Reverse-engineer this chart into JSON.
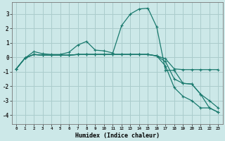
{
  "xlabel": "Humidex (Indice chaleur)",
  "bg_color": "#cce8e8",
  "grid_color": "#aacccc",
  "line_color": "#1a7a6e",
  "x_ticks": [
    0,
    1,
    2,
    3,
    4,
    5,
    6,
    7,
    8,
    9,
    10,
    11,
    12,
    13,
    14,
    15,
    16,
    17,
    18,
    19,
    20,
    21,
    22,
    23
  ],
  "ylim": [
    -4.6,
    3.8
  ],
  "xlim": [
    -0.5,
    23.5
  ],
  "yticks": [
    -4,
    -3,
    -2,
    -1,
    0,
    1,
    2,
    3
  ],
  "curve1_x": [
    0,
    1,
    2,
    3,
    4,
    5,
    6,
    7,
    8,
    9,
    10,
    11,
    12,
    13,
    14,
    15,
    16,
    17,
    18,
    19,
    20,
    21,
    22,
    23
  ],
  "curve1_y": [
    -0.8,
    -0.05,
    0.4,
    0.25,
    0.2,
    0.2,
    0.35,
    0.85,
    1.1,
    0.5,
    0.45,
    0.3,
    2.2,
    3.0,
    3.35,
    3.4,
    2.1,
    -0.9,
    -0.9,
    -1.8,
    -1.85,
    -2.55,
    -3.5,
    -3.8
  ],
  "curve2_x": [
    0,
    1,
    2,
    3,
    4,
    5,
    6,
    7,
    8,
    9,
    10,
    11,
    12,
    13,
    14,
    15,
    16,
    17,
    18,
    19,
    20,
    21,
    22,
    23
  ],
  "curve2_y": [
    -0.8,
    -0.05,
    0.2,
    0.15,
    0.15,
    0.15,
    0.15,
    0.2,
    0.2,
    0.2,
    0.2,
    0.2,
    0.2,
    0.2,
    0.2,
    0.2,
    0.1,
    -0.1,
    -0.8,
    -0.85,
    -0.85,
    -0.85,
    -0.85,
    -0.85
  ],
  "curve3_x": [
    0,
    1,
    2,
    3,
    4,
    5,
    6,
    7,
    8,
    9,
    10,
    11,
    12,
    13,
    14,
    15,
    16,
    17,
    18,
    19,
    20,
    21,
    22,
    23
  ],
  "curve3_y": [
    -0.8,
    -0.05,
    0.2,
    0.15,
    0.15,
    0.15,
    0.15,
    0.2,
    0.2,
    0.2,
    0.2,
    0.2,
    0.2,
    0.2,
    0.2,
    0.2,
    0.1,
    -0.3,
    -1.5,
    -1.8,
    -1.85,
    -2.55,
    -3.0,
    -3.5
  ],
  "curve4_x": [
    0,
    1,
    2,
    3,
    4,
    5,
    6,
    7,
    8,
    9,
    10,
    11,
    12,
    13,
    14,
    15,
    16,
    17,
    18,
    19,
    20,
    21,
    22,
    23
  ],
  "curve4_y": [
    -0.8,
    -0.05,
    0.2,
    0.15,
    0.15,
    0.15,
    0.15,
    0.2,
    0.2,
    0.2,
    0.2,
    0.2,
    0.2,
    0.2,
    0.2,
    0.2,
    0.1,
    -0.6,
    -2.1,
    -2.7,
    -3.0,
    -3.5,
    -3.5,
    -3.8
  ]
}
